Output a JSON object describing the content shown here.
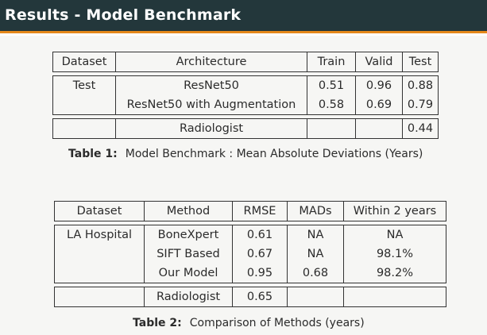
{
  "slide": {
    "title": "Results - Model Benchmark"
  },
  "table1": {
    "headers": [
      "Dataset",
      "Architecture",
      "Train",
      "Valid",
      "Test"
    ],
    "rows": [
      [
        "Test",
        "ResNet50",
        "0.51",
        "0.96",
        "0.88"
      ],
      [
        "",
        "ResNet50 with Augmentation",
        "0.58",
        "0.69",
        "0.79"
      ]
    ],
    "footer": [
      "",
      "Radiologist",
      "",
      "",
      "0.44"
    ],
    "caption_label": "Table 1:",
    "caption_text": "Model Benchmark : Mean Absolute Deviations (Years)"
  },
  "table2": {
    "headers": [
      "Dataset",
      "Method",
      "RMSE",
      "MADs",
      "Within 2 years"
    ],
    "rows": [
      [
        "LA Hospital",
        "BoneXpert",
        "0.61",
        "NA",
        "NA"
      ],
      [
        "",
        "SIFT Based",
        "0.67",
        "NA",
        "98.1%"
      ],
      [
        "",
        "Our Model",
        "0.95",
        "0.68",
        "98.2%"
      ]
    ],
    "footer": [
      "",
      "Radiologist",
      "0.65",
      "",
      ""
    ],
    "caption_label": "Table 2:",
    "caption_text": "Comparison of Methods (years)"
  },
  "colors": {
    "title_bar": "#23373b",
    "accent_rule": "#e5881a",
    "background": "#f6f6f4"
  }
}
